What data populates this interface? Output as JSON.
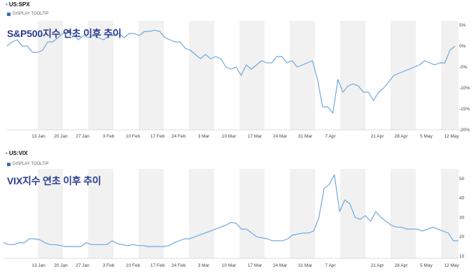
{
  "panels": [
    {
      "symbol": "US:SPX",
      "tooltip_label": "DISPLAY TOOLTIP",
      "overlay_title": "S&P500지수 연초 이후 추이"
    },
    {
      "symbol": "US:VIX",
      "tooltip_label": "DISPLAY TOOLTIP",
      "overlay_title": "VIX지수 연초 이후 추이"
    }
  ],
  "colors": {
    "line": "#6fa8dc",
    "band": "#f1f1f1",
    "axis": "#bbbbbb"
  },
  "chart_data": [
    {
      "type": "line",
      "series": [
        {
          "values": [
            0,
            1,
            1.5,
            0,
            0,
            -1.5,
            -1.5,
            -1,
            1,
            1,
            2,
            3,
            3.5,
            3,
            1.5,
            2.5,
            2,
            2.5,
            2,
            1.5,
            2.5,
            2.5,
            3,
            2,
            3,
            3,
            2.5,
            3.5,
            3.5,
            3.8,
            3.5,
            2,
            1.5,
            1,
            1,
            -0.5,
            -1,
            -2,
            -3,
            -2,
            -3,
            -2.5,
            -3,
            -5,
            -5.5,
            -5,
            -7,
            -4.5,
            -5.5,
            -4.5,
            -3.5,
            -4,
            -4,
            -2.5,
            -2.5,
            -4,
            -3.5,
            -5,
            -4.5,
            -4,
            -3.5,
            -8,
            -14.5,
            -14.5,
            -16,
            -8,
            -11,
            -9.5,
            -9,
            -9.5,
            -11,
            -11,
            -13,
            -11,
            -10,
            -8.5,
            -7,
            -6.5,
            -6,
            -5.5,
            -5,
            -4.5,
            -3.5,
            -4,
            -4.5,
            -4,
            -4,
            -1,
            0
          ]
        }
      ],
      "x_tick_labels": [
        "13 Jan",
        "20 Jan",
        "27 Jan",
        "3 Feb",
        "10 Feb",
        "17 Feb",
        "24 Feb",
        "3 Mar",
        "10 Mar",
        "17 Mar",
        "24 Mar",
        "31 Mar",
        "7 Apr",
        "21 Apr",
        "28 Apr",
        "5 May",
        "12 May"
      ],
      "y_ticks": [
        5,
        0,
        -5,
        -10,
        -15,
        -20
      ],
      "y_tick_labels": [
        "5%",
        "0%",
        "-5%",
        "-10%",
        "-15%",
        "-20%"
      ],
      "ylim": [
        -20,
        6
      ]
    },
    {
      "type": "line",
      "series": [
        {
          "values": [
            17,
            16,
            16,
            17,
            17,
            19,
            19,
            18.5,
            17,
            16,
            16,
            15.5,
            15,
            15,
            15,
            15,
            17,
            16,
            16,
            16,
            16,
            18,
            16.5,
            16,
            15.5,
            16,
            15.5,
            15.5,
            15,
            15,
            15,
            15,
            15.5,
            17,
            18,
            19,
            19,
            20,
            21,
            22,
            23,
            24,
            25,
            26,
            27.5,
            27,
            24,
            24,
            22,
            20,
            19.5,
            19,
            18,
            18,
            18,
            19,
            21,
            21.5,
            22,
            22,
            23,
            30,
            45,
            47,
            52,
            33,
            39,
            37,
            30,
            29,
            31,
            28,
            33,
            30,
            28,
            26,
            25,
            25,
            24,
            24,
            24,
            23,
            24,
            25,
            24,
            23,
            22,
            18,
            18
          ]
        }
      ],
      "x_tick_labels": [
        "13 Jan",
        "20 Jan",
        "27 Jan",
        "3 Feb",
        "10 Feb",
        "17 Feb",
        "24 Feb",
        "3 Mar",
        "10 Mar",
        "17 Mar",
        "24 Mar",
        "31 Mar",
        "7 Apr",
        "21 Apr",
        "28 Apr",
        "5 May",
        "12 May"
      ],
      "y_ticks": [
        50,
        40,
        30,
        20,
        10
      ],
      "y_tick_labels": [
        "50",
        "40",
        "30",
        "20",
        "10"
      ],
      "ylim": [
        10,
        55
      ]
    }
  ]
}
